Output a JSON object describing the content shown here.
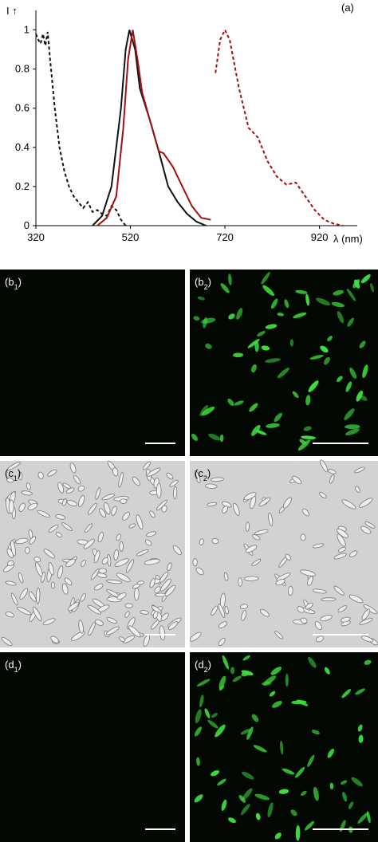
{
  "chart_data": {
    "type": "line",
    "annotation": "(a)",
    "ylabel": "I ↑",
    "xlabel": "λ (nm)",
    "xlim": [
      320,
      1000
    ],
    "ylim": [
      0,
      1.1
    ],
    "xticks": [
      320,
      520,
      720,
      920
    ],
    "yticks": [
      0,
      0.2,
      0.4,
      0.6,
      0.8,
      1
    ],
    "series": [
      {
        "color": "#111111",
        "dashed": true,
        "x": [
          320,
          325,
          330,
          335,
          340,
          345,
          350,
          360,
          370,
          380,
          390,
          400,
          410,
          420,
          430,
          440,
          450,
          460,
          470,
          480,
          490,
          500,
          510
        ],
        "values": [
          0.98,
          0.95,
          0.93,
          0.98,
          0.92,
          0.99,
          0.85,
          0.6,
          0.4,
          0.28,
          0.2,
          0.15,
          0.12,
          0.09,
          0.12,
          0.07,
          0.08,
          0.06,
          0.05,
          0.1,
          0.08,
          0.03,
          0
        ]
      },
      {
        "color": "#111111",
        "dashed": false,
        "x": [
          440,
          460,
          480,
          500,
          510,
          518,
          530,
          540,
          560,
          580,
          600,
          620,
          640,
          660,
          680
        ],
        "values": [
          0,
          0.05,
          0.2,
          0.6,
          0.9,
          1.0,
          0.9,
          0.7,
          0.55,
          0.38,
          0.2,
          0.12,
          0.06,
          0.02,
          0
        ]
      },
      {
        "color": "#a01010",
        "dashed": false,
        "x": [
          450,
          470,
          490,
          505,
          515,
          525,
          535,
          545,
          560,
          580,
          590,
          610,
          630,
          650,
          670,
          690
        ],
        "values": [
          0,
          0.04,
          0.15,
          0.5,
          0.85,
          1.0,
          0.85,
          0.68,
          0.55,
          0.38,
          0.37,
          0.3,
          0.2,
          0.1,
          0.04,
          0.03
        ]
      },
      {
        "color": "#a01010",
        "dashed": true,
        "x": [
          700,
          710,
          720,
          730,
          750,
          770,
          790,
          810,
          830,
          850,
          870,
          890,
          910,
          930,
          950,
          970
        ],
        "values": [
          0.78,
          0.95,
          1.0,
          0.95,
          0.7,
          0.5,
          0.45,
          0.33,
          0.25,
          0.21,
          0.22,
          0.15,
          0.08,
          0.03,
          0.01,
          0
        ]
      }
    ]
  },
  "panels": [
    {
      "main": "(b",
      "sub": "1",
      "end": ")"
    },
    {
      "main": "(b",
      "sub": "2",
      "end": ")"
    },
    {
      "main": "(c",
      "sub": "1",
      "end": ")"
    },
    {
      "main": "(c",
      "sub": "2",
      "end": ")"
    },
    {
      "main": "(d",
      "sub": "1",
      "end": ")"
    },
    {
      "main": "(d",
      "sub": "2",
      "end": ")"
    }
  ]
}
